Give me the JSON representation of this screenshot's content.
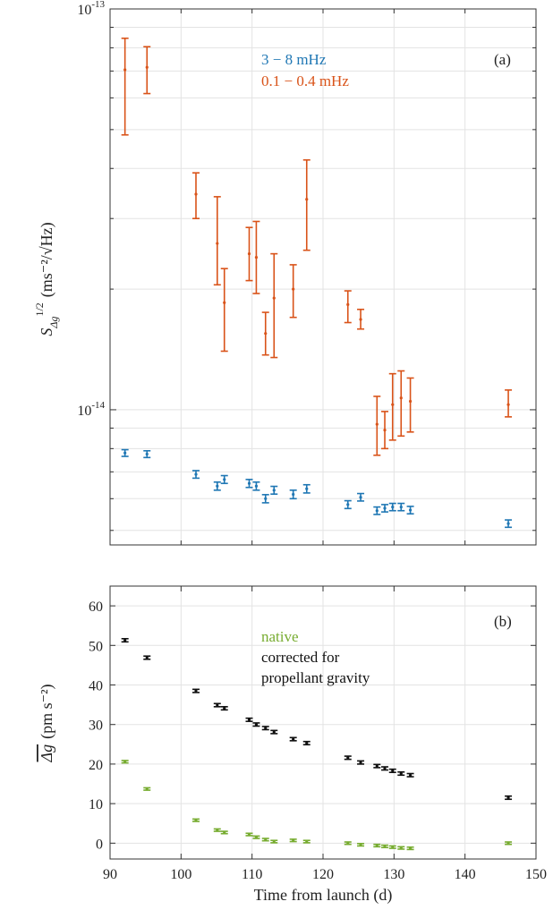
{
  "chart_data": [
    {
      "type": "scatter",
      "panel_label": "(a)",
      "ylabel_main": "S",
      "ylabel_sub": "Δg",
      "ylabel_sup": "1/2",
      "ylabel_units": "(ms⁻²/√Hz)",
      "yscale": "log",
      "ylim": [
        4.6e-15,
        1e-13
      ],
      "xlim": [
        90,
        150
      ],
      "ytick_labels": [
        {
          "value": 1e-13,
          "base": "10",
          "exp": "-13"
        },
        {
          "value": 1e-14,
          "base": "10",
          "exp": "-14"
        }
      ],
      "grid": true,
      "legend_position": "top-center",
      "series": [
        {
          "name": "3 − 8 mHz",
          "color": "#1f77b4",
          "points": [
            {
              "x": 92.1,
              "y": 7.8e-15,
              "lo": 7.65e-15,
              "hi": 7.95e-15
            },
            {
              "x": 95.2,
              "y": 7.75e-15,
              "lo": 7.6e-15,
              "hi": 7.9e-15
            },
            {
              "x": 102.1,
              "y": 6.9e-15,
              "lo": 6.75e-15,
              "hi": 7.05e-15
            },
            {
              "x": 105.1,
              "y": 6.45e-15,
              "lo": 6.3e-15,
              "hi": 6.6e-15
            },
            {
              "x": 106.1,
              "y": 6.7e-15,
              "lo": 6.55e-15,
              "hi": 6.85e-15
            },
            {
              "x": 109.6,
              "y": 6.55e-15,
              "lo": 6.4e-15,
              "hi": 6.7e-15
            },
            {
              "x": 110.6,
              "y": 6.45e-15,
              "lo": 6.3e-15,
              "hi": 6.6e-15
            },
            {
              "x": 111.9,
              "y": 6e-15,
              "lo": 5.86e-15,
              "hi": 6.14e-15
            },
            {
              "x": 113.1,
              "y": 6.3e-15,
              "lo": 6.16e-15,
              "hi": 6.44e-15
            },
            {
              "x": 115.8,
              "y": 6.15e-15,
              "lo": 6e-15,
              "hi": 6.3e-15
            },
            {
              "x": 117.7,
              "y": 6.35e-15,
              "lo": 6.2e-15,
              "hi": 6.5e-15
            },
            {
              "x": 123.5,
              "y": 5.8e-15,
              "lo": 5.67e-15,
              "hi": 5.93e-15
            },
            {
              "x": 125.3,
              "y": 6.05e-15,
              "lo": 5.92e-15,
              "hi": 6.18e-15
            },
            {
              "x": 127.6,
              "y": 5.6e-15,
              "lo": 5.48e-15,
              "hi": 5.72e-15
            },
            {
              "x": 128.7,
              "y": 5.68e-15,
              "lo": 5.56e-15,
              "hi": 5.8e-15
            },
            {
              "x": 129.8,
              "y": 5.72e-15,
              "lo": 5.6e-15,
              "hi": 5.84e-15
            },
            {
              "x": 131.0,
              "y": 5.72e-15,
              "lo": 5.6e-15,
              "hi": 5.84e-15
            },
            {
              "x": 132.3,
              "y": 5.62e-15,
              "lo": 5.5e-15,
              "hi": 5.74e-15
            },
            {
              "x": 146.1,
              "y": 5.2e-15,
              "lo": 5.09e-15,
              "hi": 5.31e-15
            }
          ]
        },
        {
          "name": "0.1 − 0.4 mHz",
          "color": "#d95319",
          "points": [
            {
              "x": 92.1,
              "y": 7.05e-14,
              "lo": 4.85e-14,
              "hi": 8.45e-14
            },
            {
              "x": 95.2,
              "y": 7.15e-14,
              "lo": 6.15e-14,
              "hi": 8.05e-14
            },
            {
              "x": 102.1,
              "y": 3.45e-14,
              "lo": 3e-14,
              "hi": 3.9e-14
            },
            {
              "x": 105.1,
              "y": 2.6e-14,
              "lo": 2.05e-14,
              "hi": 3.4e-14
            },
            {
              "x": 106.1,
              "y": 1.85e-14,
              "lo": 1.4e-14,
              "hi": 2.25e-14
            },
            {
              "x": 109.6,
              "y": 2.45e-14,
              "lo": 2.1e-14,
              "hi": 2.85e-14
            },
            {
              "x": 110.6,
              "y": 2.4e-14,
              "lo": 1.95e-14,
              "hi": 2.95e-14
            },
            {
              "x": 111.9,
              "y": 1.55e-14,
              "lo": 1.37e-14,
              "hi": 1.75e-14
            },
            {
              "x": 113.1,
              "y": 1.9e-14,
              "lo": 1.35e-14,
              "hi": 2.45e-14
            },
            {
              "x": 115.8,
              "y": 2e-14,
              "lo": 1.7e-14,
              "hi": 2.3e-14
            },
            {
              "x": 117.7,
              "y": 3.35e-14,
              "lo": 2.5e-14,
              "hi": 4.2e-14
            },
            {
              "x": 123.5,
              "y": 1.83e-14,
              "lo": 1.65e-14,
              "hi": 1.98e-14
            },
            {
              "x": 125.3,
              "y": 1.68e-14,
              "lo": 1.59e-14,
              "hi": 1.78e-14
            },
            {
              "x": 127.6,
              "y": 9.2e-15,
              "lo": 7.7e-15,
              "hi": 1.08e-14
            },
            {
              "x": 128.7,
              "y": 8.9e-15,
              "lo": 8e-15,
              "hi": 9.9e-15
            },
            {
              "x": 129.8,
              "y": 1.03e-14,
              "lo": 8.4e-15,
              "hi": 1.23e-14
            },
            {
              "x": 131.0,
              "y": 1.07e-14,
              "lo": 8.6e-15,
              "hi": 1.25e-14
            },
            {
              "x": 132.3,
              "y": 1.05e-14,
              "lo": 8.8e-15,
              "hi": 1.2e-14
            },
            {
              "x": 146.1,
              "y": 1.03e-14,
              "lo": 9.6e-15,
              "hi": 1.12e-14
            }
          ]
        }
      ]
    },
    {
      "type": "scatter",
      "panel_label": "(b)",
      "ylabel_main": "Δg",
      "ylabel_units": "(pm s⁻²)",
      "xlabel": "Time from launch (d)",
      "xlim": [
        90,
        150
      ],
      "ylim": [
        -4,
        65
      ],
      "xticks": [
        90,
        100,
        110,
        120,
        130,
        140,
        150
      ],
      "yticks": [
        0,
        10,
        20,
        30,
        40,
        50,
        60
      ],
      "grid": true,
      "legend_position": "top-center",
      "series": [
        {
          "name": "native",
          "color": "#77ac30",
          "err": 0.3,
          "points": [
            {
              "x": 92.1,
              "y": 20.6
            },
            {
              "x": 95.2,
              "y": 13.7
            },
            {
              "x": 102.1,
              "y": 5.8
            },
            {
              "x": 105.1,
              "y": 3.3
            },
            {
              "x": 106.1,
              "y": 2.7
            },
            {
              "x": 109.6,
              "y": 2.2
            },
            {
              "x": 110.6,
              "y": 1.5
            },
            {
              "x": 111.9,
              "y": 0.9
            },
            {
              "x": 113.1,
              "y": 0.4
            },
            {
              "x": 115.8,
              "y": 0.7
            },
            {
              "x": 117.7,
              "y": 0.4
            },
            {
              "x": 123.5,
              "y": 0.0
            },
            {
              "x": 125.3,
              "y": -0.4
            },
            {
              "x": 127.6,
              "y": -0.6
            },
            {
              "x": 128.7,
              "y": -0.8
            },
            {
              "x": 129.8,
              "y": -1.0
            },
            {
              "x": 131.0,
              "y": -1.2
            },
            {
              "x": 132.3,
              "y": -1.3
            },
            {
              "x": 146.1,
              "y": 0.0
            }
          ]
        },
        {
          "name_line1": "corrected for",
          "name_line2": "propellant gravity",
          "color": "#111111",
          "err": 0.4,
          "points": [
            {
              "x": 92.1,
              "y": 51.3
            },
            {
              "x": 95.2,
              "y": 46.9
            },
            {
              "x": 102.1,
              "y": 38.5
            },
            {
              "x": 105.1,
              "y": 34.9
            },
            {
              "x": 106.1,
              "y": 34.1
            },
            {
              "x": 109.6,
              "y": 31.2
            },
            {
              "x": 110.6,
              "y": 30.0
            },
            {
              "x": 111.9,
              "y": 29.1
            },
            {
              "x": 113.1,
              "y": 28.1
            },
            {
              "x": 115.8,
              "y": 26.3
            },
            {
              "x": 117.7,
              "y": 25.3
            },
            {
              "x": 123.5,
              "y": 21.6
            },
            {
              "x": 125.3,
              "y": 20.4
            },
            {
              "x": 127.6,
              "y": 19.5
            },
            {
              "x": 128.7,
              "y": 18.9
            },
            {
              "x": 129.8,
              "y": 18.3
            },
            {
              "x": 131.0,
              "y": 17.6
            },
            {
              "x": 132.3,
              "y": 17.2
            },
            {
              "x": 146.1,
              "y": 11.5
            }
          ]
        }
      ]
    }
  ]
}
